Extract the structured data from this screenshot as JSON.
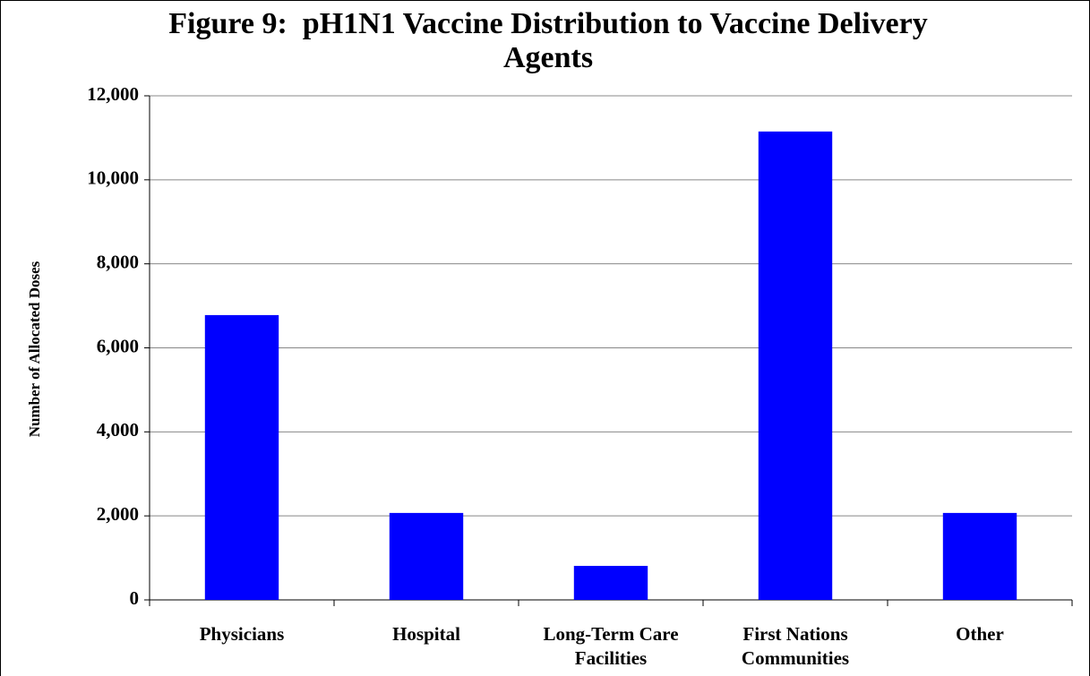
{
  "chart_data": {
    "type": "bar",
    "title": "Figure 9:  pH1N1 Vaccine Distribution to Vaccine Delivery Agents",
    "y_label": "Number of Allocated Doses",
    "categories": [
      "Physicians",
      "Hospital",
      "Long-Term Care Facilities",
      "First Nations Communities",
      "Other"
    ],
    "values": [
      6780,
      2070,
      810,
      11150,
      2070
    ],
    "color": "#0000ff",
    "ylim": [
      0,
      12000
    ],
    "yticks": [
      0,
      {
        "value": 2000,
        "label": "2,000"
      },
      {
        "value": 4000,
        "label": "4,000"
      },
      {
        "value": 6000,
        "label": "6,000"
      },
      {
        "value": 8000,
        "label": "8,000"
      },
      {
        "value": 10000,
        "label": "10,000"
      },
      {
        "value": 12000,
        "label": "12,000"
      }
    ],
    "grid": true
  }
}
